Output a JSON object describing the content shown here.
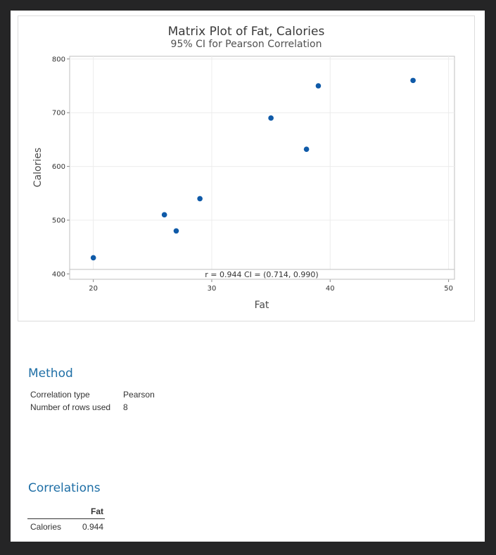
{
  "chart_data": {
    "type": "scatter",
    "title": "Matrix Plot of Fat, Calories",
    "subtitle": "95% CI for Pearson Correlation",
    "xlabel": "Fat",
    "ylabel": "Calories",
    "xlim": [
      18,
      50.5
    ],
    "ylim": [
      390,
      805
    ],
    "xticks": [
      20,
      30,
      40,
      50
    ],
    "yticks": [
      400,
      500,
      600,
      700,
      800
    ],
    "grid": true,
    "points": [
      {
        "x": 20,
        "y": 430
      },
      {
        "x": 26,
        "y": 510
      },
      {
        "x": 27,
        "y": 480
      },
      {
        "x": 29,
        "y": 540
      },
      {
        "x": 35,
        "y": 690
      },
      {
        "x": 38,
        "y": 632
      },
      {
        "x": 39,
        "y": 750
      },
      {
        "x": 47,
        "y": 760
      }
    ],
    "annotation": "r = 0.944  CI = (0.714, 0.990)",
    "marker_color": "#0f5aa8"
  },
  "method": {
    "heading": "Method",
    "rows": [
      {
        "label": "Correlation type",
        "value": "Pearson"
      },
      {
        "label": "Number of rows used",
        "value": "8"
      }
    ]
  },
  "correlations": {
    "heading": "Correlations",
    "column": "Fat",
    "row_label": "Calories",
    "value": "0.944"
  }
}
